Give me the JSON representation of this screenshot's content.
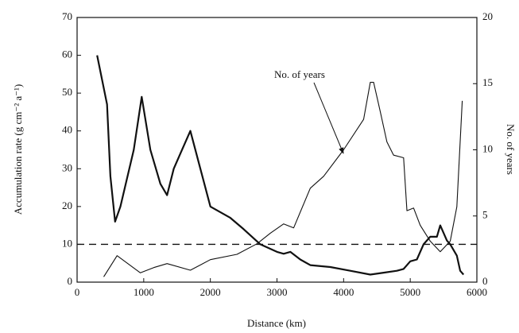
{
  "chart_data": {
    "type": "line",
    "xlabel": "Distance (km)",
    "ylabel": "Accumulation rate (g cm⁻² a⁻¹)",
    "y2label": "No. of years",
    "annotation": "No. of years",
    "xlim": [
      0,
      6000
    ],
    "xticks": [
      0,
      1000,
      2000,
      3000,
      4000,
      5000,
      6000
    ],
    "ylim": [
      0,
      70
    ],
    "yticks": [
      0,
      10,
      20,
      30,
      40,
      50,
      60,
      70
    ],
    "y2lim": [
      0,
      20
    ],
    "y2ticks": [
      0,
      5,
      10,
      15,
      20
    ],
    "hline": 10,
    "series": [
      {
        "color": "#111111",
        "width": 2.2,
        "x": [
          300,
          450,
          500,
          570,
          650,
          850,
          970,
          1100,
          1250,
          1350,
          1450,
          1550,
          1700,
          1850,
          2000,
          2300,
          2500,
          2750,
          3000,
          3100,
          3200,
          3350,
          3500,
          3800,
          4100,
          4400,
          4600,
          4800,
          4900,
          5000,
          5100,
          5200,
          5300,
          5400,
          5450,
          5550,
          5600,
          5700,
          5750,
          5800
        ],
        "values": [
          60,
          47,
          28,
          16,
          20,
          35,
          49,
          35,
          26,
          23,
          30,
          34,
          40,
          30,
          20,
          17,
          14,
          10,
          8,
          7.5,
          8,
          6,
          4.5,
          4,
          3,
          2,
          2.5,
          3,
          3.5,
          5.5,
          6,
          10,
          12,
          12,
          15,
          11,
          10,
          7,
          3,
          2
        ]
      },
      {
        "color": "#111111",
        "width": 1.1,
        "axis": "y2",
        "x": [
          400,
          600,
          950,
          1150,
          1350,
          1700,
          2000,
          2400,
          2700,
          2900,
          3100,
          3250,
          3500,
          3700,
          4000,
          4300,
          4400,
          4450,
          4550,
          4650,
          4750,
          4900,
          4950,
          5050,
          5150,
          5300,
          5450,
          5600,
          5700,
          5780
        ],
        "values": [
          0.4,
          2,
          0.7,
          1.1,
          1.4,
          0.9,
          1.7,
          2.1,
          2.9,
          3.7,
          4.4,
          4.1,
          7.1,
          8,
          10,
          12.3,
          15.1,
          15.1,
          12.9,
          10.6,
          9.6,
          9.4,
          5.4,
          5.6,
          4.3,
          3.1,
          2.3,
          3.1,
          5.7,
          13.7
        ]
      }
    ]
  }
}
